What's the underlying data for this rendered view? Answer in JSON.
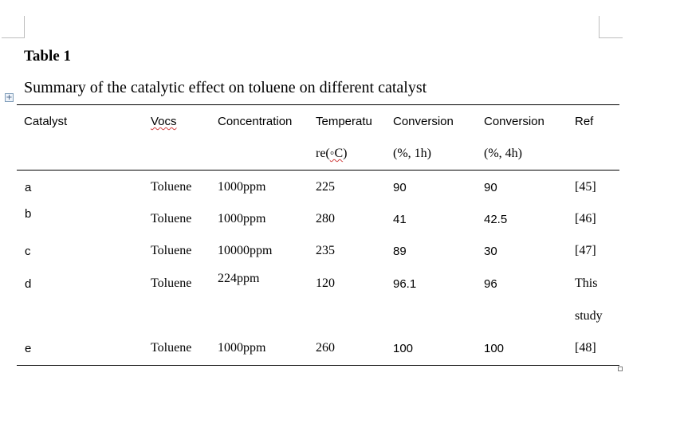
{
  "table": {
    "label": "Table 1",
    "caption": "Summary of the catalytic effect on toluene on different catalyst",
    "header": {
      "catalyst": "Catalyst",
      "vocs": "Vocs",
      "concentration": "Concentration",
      "temperature_line1": "Temperatu",
      "temperature_line2_pre": "re(",
      "temperature_line2_unit": "◦C",
      "temperature_line2_post": ")",
      "conversion_1h_line1": "Conversion",
      "conversion_1h_line2": "(%, 1h)",
      "conversion_4h_line1": "Conversion",
      "conversion_4h_line2": "(%, 4h)",
      "ref": "Ref"
    },
    "rows": [
      {
        "catalyst": "a",
        "vocs": "Toluene",
        "concentration": "1000ppm",
        "temperature": "225",
        "conversion_1h": "90",
        "conversion_4h": "90",
        "ref": "[45]"
      },
      {
        "catalyst": "b",
        "vocs": "Toluene",
        "concentration": "1000ppm",
        "temperature": "280",
        "conversion_1h": "41",
        "conversion_4h": "42.5",
        "ref": "[46]"
      },
      {
        "catalyst": "c",
        "vocs": "Toluene",
        "concentration": "10000ppm",
        "temperature": "235",
        "conversion_1h": "89",
        "conversion_4h": "30",
        "ref": "[47]"
      },
      {
        "catalyst": "d",
        "vocs": "Toluene",
        "concentration": "224ppm",
        "temperature": "120",
        "conversion_1h": "96.1",
        "conversion_4h": "96",
        "ref": "This",
        "ref_line2": "study"
      },
      {
        "catalyst": "e",
        "vocs": "Toluene",
        "concentration": "1000ppm",
        "temperature": "260",
        "conversion_1h": "100",
        "conversion_4h": "100",
        "ref": "[48]"
      }
    ]
  },
  "icons": {
    "table_move_handle": "move-icon",
    "table_resize_handle": "resize-icon"
  }
}
